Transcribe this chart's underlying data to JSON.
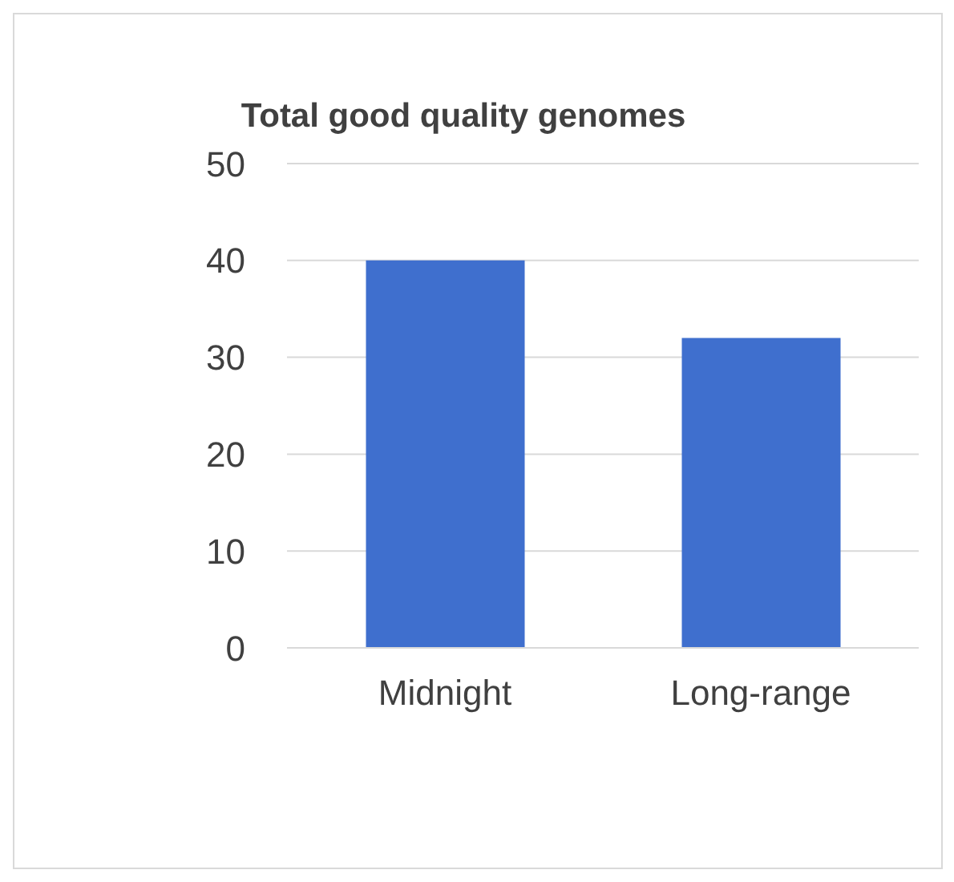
{
  "chart_data": {
    "type": "bar",
    "title": "Total good quality genomes",
    "categories": [
      "Midnight",
      "Long-range"
    ],
    "values": [
      40,
      32
    ],
    "color": "#3f6fce",
    "ylim": [
      0,
      50
    ],
    "yticks": [
      0,
      10,
      20,
      30,
      40,
      50
    ],
    "grid": "y"
  }
}
